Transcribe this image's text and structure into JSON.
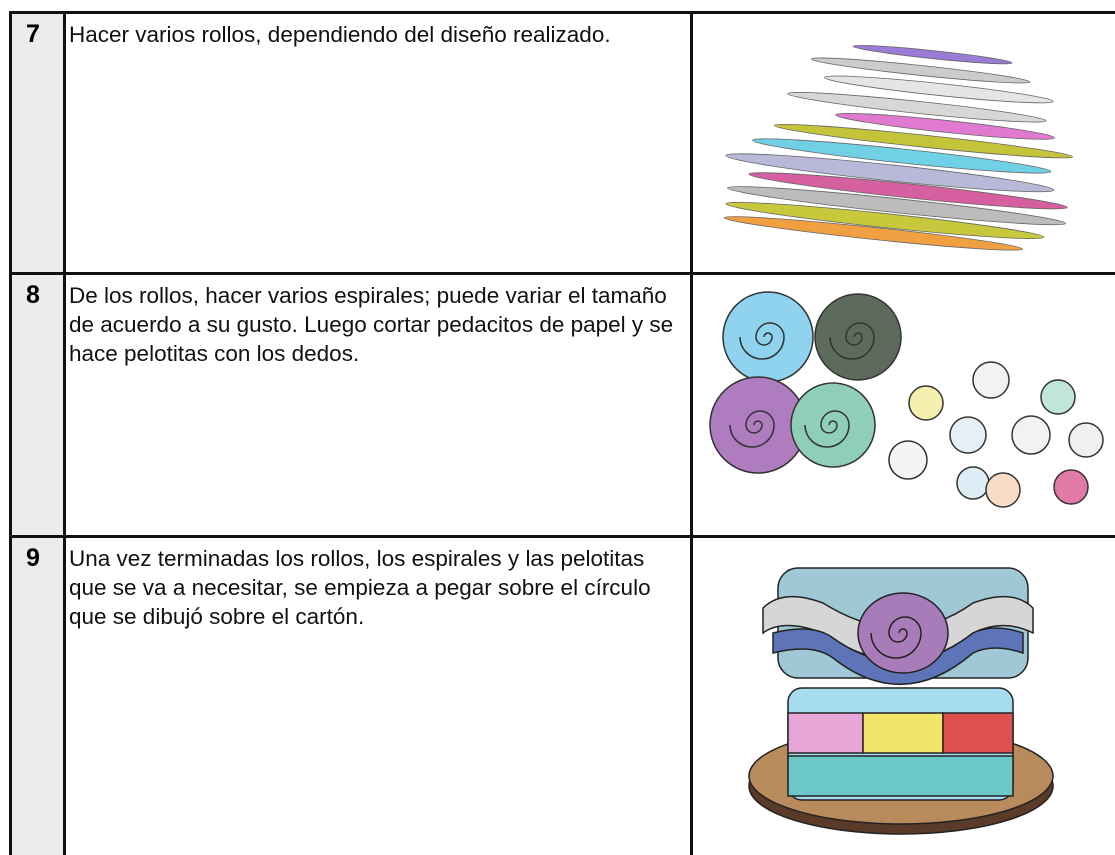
{
  "table": {
    "rows": [
      {
        "number": "7",
        "text": "Hacer varios rollos, dependiendo del diseño realizado."
      },
      {
        "number": "8",
        "text": "De los rollos, hacer varios espirales; puede variar el tamaño de acuerdo a su gusto. Luego cortar pedacitos de papel y se hace pelotitas con los dedos."
      },
      {
        "number": "9",
        "text": "Una vez terminadas los rollos, los espirales y las pelotitas que se va a necesitar, se empieza a pegar sobre el círculo que se dibujó sobre el cartón."
      }
    ]
  }
}
